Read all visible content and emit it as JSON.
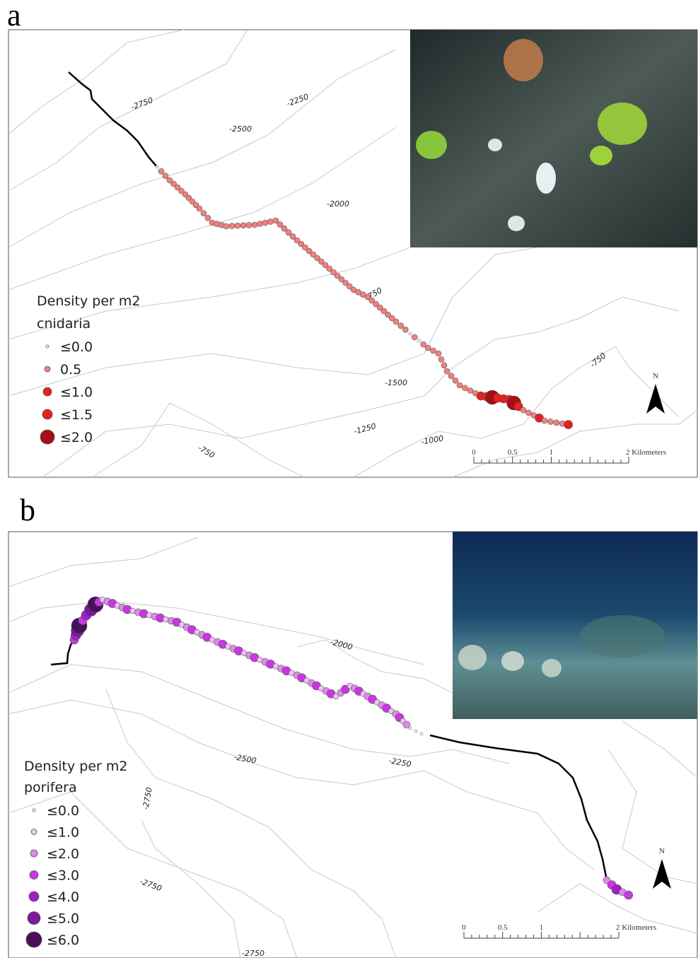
{
  "panels": [
    {
      "label": "a",
      "legend": {
        "title": "Density per m2",
        "taxon": "cnidaria",
        "items": [
          "≤0.0",
          "0.5",
          "≤1.0",
          "≤1.5",
          "≤2.0"
        ]
      },
      "contour_labels": [
        "-2750",
        "-2250",
        "-2500",
        "-2000",
        "750",
        "-750",
        "-1500",
        "-1250",
        "-1000",
        "-750"
      ],
      "scale": {
        "ticks": [
          "0",
          "0.5",
          "1"
        ],
        "end": "2 Kilometers"
      },
      "north": "N"
    },
    {
      "label": "b",
      "legend": {
        "title": "Density per m2",
        "taxon": "porifera",
        "items": [
          "≤0.0",
          "≤1.0",
          "≤2.0",
          "≤3.0",
          "≤4.0",
          "≤5.0",
          "≤6.0"
        ]
      },
      "contour_labels": [
        "-2000",
        "-2500",
        "-2250",
        "-2750",
        "-2750",
        "-2750"
      ],
      "scale": {
        "ticks": [
          "0",
          "0.5",
          "1"
        ],
        "end": "2 Kilometers"
      },
      "north": "N"
    }
  ]
}
